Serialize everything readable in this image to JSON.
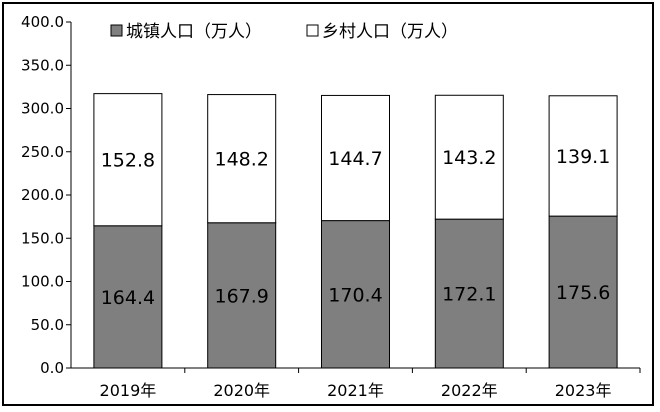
{
  "chart_data": {
    "type": "bar",
    "stacked": true,
    "categories": [
      "2019年",
      "2020年",
      "2021年",
      "2022年",
      "2023年"
    ],
    "series": [
      {
        "name": "城镇人口（万人）",
        "values": [
          164.4,
          167.9,
          170.4,
          172.1,
          175.6
        ],
        "color": "#7f7f7f"
      },
      {
        "name": "乡村人口（万人）",
        "values": [
          152.8,
          148.2,
          144.7,
          143.2,
          139.1
        ],
        "color": "#ffffff"
      }
    ],
    "ylim": [
      0,
      400
    ],
    "yticks": [
      "0.0",
      "50.0",
      "100.0",
      "150.0",
      "200.0",
      "250.0",
      "300.0",
      "350.0",
      "400.0"
    ],
    "grid": false,
    "legend": "top",
    "data_labels": true
  }
}
